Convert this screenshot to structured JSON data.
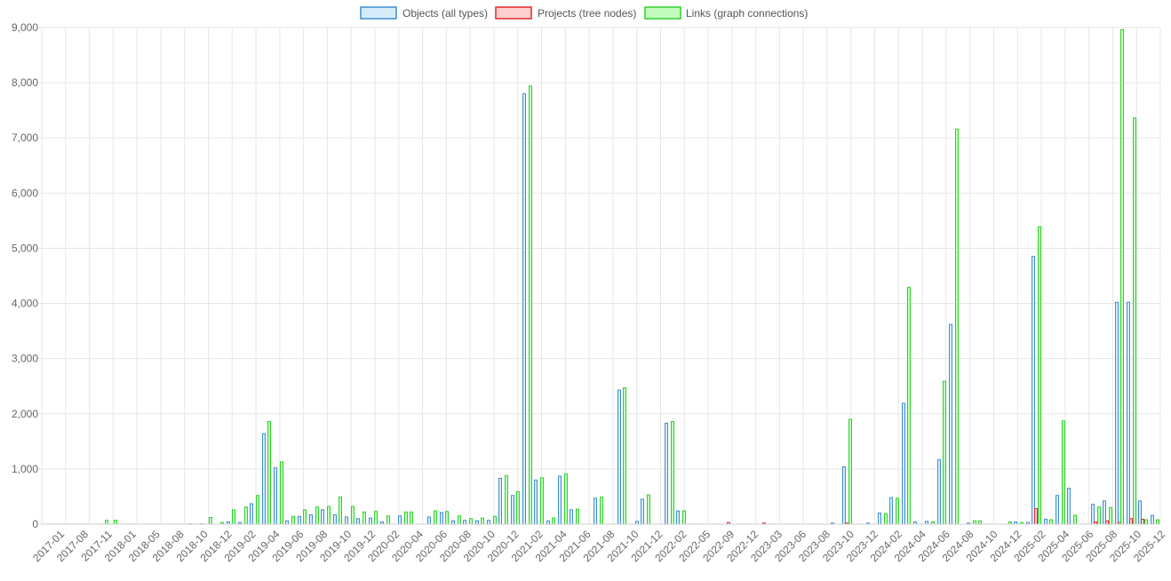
{
  "chart_data": {
    "type": "bar",
    "title": "",
    "xlabel": "",
    "ylabel": "",
    "ylim": [
      0,
      9000
    ],
    "y_ticks": [
      "0",
      "1,000",
      "2,000",
      "3,000",
      "4,000",
      "5,000",
      "6,000",
      "7,000",
      "8,000",
      "9,000"
    ],
    "y_tick_values": [
      0,
      1000,
      2000,
      3000,
      4000,
      5000,
      6000,
      7000,
      8000,
      9000
    ],
    "grid": true,
    "legend_position": "top-center",
    "x_tick_labels": [
      "2017-01",
      "2017-08",
      "2017-11",
      "2018-01",
      "2018-05",
      "2018-08",
      "2018-10",
      "2018-12",
      "2019-02",
      "2019-04",
      "2019-06",
      "2019-08",
      "2019-10",
      "2019-12",
      "2020-02",
      "2020-04",
      "2020-06",
      "2020-08",
      "2020-10",
      "2020-12",
      "2021-02",
      "2021-04",
      "2021-06",
      "2021-08",
      "2021-10",
      "2021-12",
      "2022-02",
      "2022-05",
      "2022-09",
      "2022-12",
      "2023-03",
      "2023-06",
      "2023-08",
      "2023-10",
      "2023-12",
      "2024-02",
      "2024-04",
      "2024-06",
      "2024-08",
      "2024-10",
      "2024-12",
      "2025-02",
      "2025-04",
      "2025-06",
      "2025-08",
      "2025-10",
      "2025-12"
    ],
    "series": [
      {
        "name": "Objects (all types)",
        "fill": "#d6ecfa",
        "stroke": "#3d8fd1",
        "values": [
          0,
          0,
          0,
          0,
          0,
          0,
          0,
          0,
          0,
          0,
          0,
          0,
          0,
          0,
          0,
          0,
          0,
          0,
          0,
          0,
          0,
          0,
          0,
          0,
          0,
          0,
          0,
          0,
          0,
          0,
          0,
          0,
          0,
          0,
          0,
          0,
          0,
          0,
          0,
          0,
          0,
          10,
          0,
          0,
          0,
          0,
          20,
          0,
          0,
          0,
          0,
          0,
          50,
          0,
          0,
          0,
          0,
          0,
          40,
          0,
          0,
          0,
          0,
          0,
          0,
          0,
          0,
          0,
          0,
          0,
          0,
          0,
          0,
          0,
          0,
          0,
          0,
          0,
          0,
          0,
          0,
          0,
          0,
          0,
          0,
          0,
          0,
          0,
          0,
          0,
          0,
          0,
          0,
          0,
          0,
          0,
          0,
          0,
          0,
          0,
          0,
          0,
          0,
          0,
          0,
          0,
          0,
          0,
          0,
          0,
          0,
          0,
          0,
          0,
          0,
          0,
          0,
          0,
          0,
          0,
          0,
          0,
          0,
          0,
          0,
          0,
          0,
          0,
          0,
          0,
          0,
          0,
          0,
          0,
          0,
          0,
          0,
          0,
          0,
          0,
          0,
          0,
          0,
          0,
          0,
          0,
          0,
          0,
          0,
          0,
          0,
          0,
          0,
          0,
          0,
          0,
          0,
          0,
          0,
          0,
          0,
          0,
          0,
          0,
          0,
          0,
          0,
          0,
          0,
          0,
          0,
          0,
          0,
          0,
          0,
          0,
          0,
          0,
          0,
          0,
          0,
          0,
          0,
          0,
          0,
          0,
          0,
          0,
          0,
          0,
          0,
          0,
          0,
          0,
          0,
          0,
          0,
          0,
          0,
          0,
          0,
          0,
          0,
          0,
          0,
          0,
          0,
          0,
          0,
          0,
          0,
          0,
          0,
          0,
          0,
          0,
          0,
          0,
          0,
          0,
          0,
          0,
          0,
          0,
          0,
          0,
          0,
          0,
          0,
          0,
          0,
          0,
          0,
          0,
          0,
          0,
          0,
          0,
          0,
          0,
          0,
          0,
          0,
          0,
          0,
          0,
          0,
          0,
          0,
          0,
          0,
          0,
          0,
          0,
          0,
          0,
          0,
          0,
          0,
          0,
          0,
          0,
          0,
          0,
          0,
          0,
          0,
          0,
          0,
          0,
          0,
          0,
          0,
          0,
          0,
          0,
          0,
          0,
          0,
          0,
          0,
          0,
          0,
          0,
          0,
          0,
          0,
          0,
          0,
          0,
          0,
          0,
          0,
          0,
          0,
          0,
          0,
          0,
          0,
          0,
          0,
          0,
          0,
          0,
          0,
          0,
          0,
          0,
          0,
          0,
          0,
          0,
          0,
          0,
          0
        ]
      },
      {
        "name": "Projects (tree nodes)",
        "fill": "#ffcfcf",
        "stroke": "#e0282e",
        "values": []
      },
      {
        "name": "Links (graph connections)",
        "fill": "#c4fcc0",
        "stroke": "#2ed12a",
        "values": []
      }
    ],
    "months": [
      {
        "x": 60,
        "o": 0,
        "p": 0,
        "l": 0
      },
      {
        "x": 120,
        "o": 0,
        "p": 0,
        "l": 70
      },
      {
        "x": 130,
        "o": 0,
        "p": 0,
        "l": 70
      },
      {
        "x": 214,
        "o": 5,
        "p": 0,
        "l": 0
      },
      {
        "x": 227,
        "o": 5,
        "p": 0,
        "l": 0
      },
      {
        "x": 237,
        "o": 0,
        "p": 0,
        "l": 120
      },
      {
        "x": 250,
        "o": 10,
        "p": 0,
        "l": 30
      },
      {
        "x": 257,
        "o": 40,
        "p": 0,
        "l": 0
      },
      {
        "x": 263,
        "o": 0,
        "p": 0,
        "l": 260
      },
      {
        "x": 270,
        "o": 30,
        "p": 0,
        "l": 0
      },
      {
        "x": 277,
        "o": 0,
        "p": 0,
        "l": 310
      },
      {
        "x": 283,
        "o": 370,
        "p": 0,
        "l": 0
      },
      {
        "x": 290,
        "o": 0,
        "p": 0,
        "l": 520
      },
      {
        "x": 297,
        "o": 1640,
        "p": 0,
        "l": 0
      },
      {
        "x": 303,
        "o": 0,
        "p": 0,
        "l": 1860
      },
      {
        "x": 310,
        "o": 1020,
        "p": 0,
        "l": 0
      },
      {
        "x": 317,
        "o": 0,
        "p": 0,
        "l": 1130
      },
      {
        "x": 323,
        "o": 60,
        "p": 0,
        "l": 0
      },
      {
        "x": 330,
        "o": 0,
        "p": 0,
        "l": 140
      },
      {
        "x": 337,
        "o": 140,
        "p": 0,
        "l": 0
      },
      {
        "x": 343,
        "o": 0,
        "p": 0,
        "l": 260
      },
      {
        "x": 350,
        "o": 170,
        "p": 0,
        "l": 0
      },
      {
        "x": 357,
        "o": 0,
        "p": 0,
        "l": 310
      },
      {
        "x": 363,
        "o": 260,
        "p": 0,
        "l": 0
      },
      {
        "x": 370,
        "o": 0,
        "p": 0,
        "l": 320
      },
      {
        "x": 377,
        "o": 170,
        "p": 0,
        "l": 0
      },
      {
        "x": 383,
        "o": 0,
        "p": 0,
        "l": 490
      },
      {
        "x": 390,
        "o": 130,
        "p": 0,
        "l": 0
      },
      {
        "x": 397,
        "o": 0,
        "p": 0,
        "l": 320
      },
      {
        "x": 403,
        "o": 100,
        "p": 0,
        "l": 0
      },
      {
        "x": 410,
        "o": 0,
        "p": 0,
        "l": 220
      },
      {
        "x": 417,
        "o": 110,
        "p": 0,
        "l": 0
      },
      {
        "x": 423,
        "o": 0,
        "p": 0,
        "l": 230
      },
      {
        "x": 430,
        "o": 40,
        "p": 0,
        "l": 0
      },
      {
        "x": 437,
        "o": 0,
        "p": 0,
        "l": 150
      },
      {
        "x": 450,
        "o": 150,
        "p": 0,
        "l": 0
      },
      {
        "x": 457,
        "o": 0,
        "p": 0,
        "l": 220
      },
      {
        "x": 463,
        "o": 0,
        "p": 0,
        "l": 220
      },
      {
        "x": 483,
        "o": 130,
        "p": 0,
        "l": 0
      },
      {
        "x": 490,
        "o": 0,
        "p": 0,
        "l": 240
      },
      {
        "x": 497,
        "o": 210,
        "p": 0,
        "l": 0
      },
      {
        "x": 503,
        "o": 0,
        "p": 0,
        "l": 230
      },
      {
        "x": 510,
        "o": 60,
        "p": 0,
        "l": 0
      },
      {
        "x": 517,
        "o": 0,
        "p": 0,
        "l": 150
      },
      {
        "x": 523,
        "o": 70,
        "p": 0,
        "l": 0
      },
      {
        "x": 530,
        "o": 0,
        "p": 0,
        "l": 100
      },
      {
        "x": 537,
        "o": 60,
        "p": 0,
        "l": 0
      },
      {
        "x": 543,
        "o": 0,
        "p": 0,
        "l": 110
      },
      {
        "x": 550,
        "o": 70,
        "p": 0,
        "l": 0
      },
      {
        "x": 557,
        "o": 0,
        "p": 0,
        "l": 140
      },
      {
        "x": 563,
        "o": 830,
        "p": 0,
        "l": 0
      },
      {
        "x": 570,
        "o": 0,
        "p": 0,
        "l": 880
      },
      {
        "x": 577,
        "o": 520,
        "p": 0,
        "l": 0
      },
      {
        "x": 583,
        "o": 0,
        "p": 0,
        "l": 590
      },
      {
        "x": 590,
        "o": 7800,
        "p": 0,
        "l": 0
      },
      {
        "x": 597,
        "o": 0,
        "p": 0,
        "l": 7940
      },
      {
        "x": 603,
        "o": 800,
        "p": 0,
        "l": 0
      },
      {
        "x": 610,
        "o": 0,
        "p": 0,
        "l": 840
      },
      {
        "x": 617,
        "o": 60,
        "p": 0,
        "l": 0
      },
      {
        "x": 623,
        "o": 0,
        "p": 0,
        "l": 110
      },
      {
        "x": 630,
        "o": 870,
        "p": 0,
        "l": 0
      },
      {
        "x": 637,
        "o": 0,
        "p": 0,
        "l": 910
      },
      {
        "x": 643,
        "o": 260,
        "p": 0,
        "l": 0
      },
      {
        "x": 650,
        "o": 0,
        "p": 0,
        "l": 270
      },
      {
        "x": 670,
        "o": 470,
        "p": 0,
        "l": 0
      },
      {
        "x": 677,
        "o": 0,
        "p": 0,
        "l": 490
      },
      {
        "x": 697,
        "o": 2430,
        "p": 0,
        "l": 0
      },
      {
        "x": 703,
        "o": 0,
        "p": 0,
        "l": 2470
      },
      {
        "x": 717,
        "o": 50,
        "p": 0,
        "l": 0
      },
      {
        "x": 723,
        "o": 450,
        "p": 0,
        "l": 0
      },
      {
        "x": 730,
        "o": 0,
        "p": 0,
        "l": 530
      },
      {
        "x": 750,
        "o": 1830,
        "p": 0,
        "l": 0
      },
      {
        "x": 757,
        "o": 0,
        "p": 0,
        "l": 1860
      },
      {
        "x": 763,
        "o": 240,
        "p": 0,
        "l": 0
      },
      {
        "x": 770,
        "o": 0,
        "p": 0,
        "l": 240
      },
      {
        "x": 820,
        "o": 0,
        "p": 30,
        "l": 0
      },
      {
        "x": 860,
        "o": 0,
        "p": 20,
        "l": 0
      },
      {
        "x": 937,
        "o": 20,
        "p": 0,
        "l": 0
      },
      {
        "x": 950,
        "o": 1040,
        "p": 0,
        "l": 0
      },
      {
        "x": 953,
        "o": 0,
        "p": 20,
        "l": 0
      },
      {
        "x": 957,
        "o": 0,
        "p": 0,
        "l": 1900
      },
      {
        "x": 977,
        "o": 20,
        "p": 0,
        "l": 0
      },
      {
        "x": 990,
        "o": 200,
        "p": 0,
        "l": 0
      },
      {
        "x": 997,
        "o": 0,
        "p": 0,
        "l": 190
      },
      {
        "x": 1003,
        "o": 480,
        "p": 0,
        "l": 0
      },
      {
        "x": 1010,
        "o": 0,
        "p": 0,
        "l": 470
      },
      {
        "x": 1017,
        "o": 2190,
        "p": 0,
        "l": 0
      },
      {
        "x": 1023,
        "o": 0,
        "p": 0,
        "l": 4290
      },
      {
        "x": 1030,
        "o": 40,
        "p": 0,
        "l": 0
      },
      {
        "x": 1043,
        "o": 50,
        "p": 0,
        "l": 0
      },
      {
        "x": 1050,
        "o": 0,
        "p": 0,
        "l": 40
      },
      {
        "x": 1057,
        "o": 1170,
        "p": 0,
        "l": 0
      },
      {
        "x": 1063,
        "o": 0,
        "p": 0,
        "l": 2590
      },
      {
        "x": 1070,
        "o": 3620,
        "p": 0,
        "l": 0
      },
      {
        "x": 1077,
        "o": 0,
        "p": 0,
        "l": 7160
      },
      {
        "x": 1090,
        "o": 20,
        "p": 0,
        "l": 0
      },
      {
        "x": 1097,
        "o": 0,
        "p": 0,
        "l": 60
      },
      {
        "x": 1103,
        "o": 0,
        "p": 0,
        "l": 60
      },
      {
        "x": 1137,
        "o": 0,
        "p": 0,
        "l": 40
      },
      {
        "x": 1143,
        "o": 40,
        "p": 0,
        "l": 0
      },
      {
        "x": 1150,
        "o": 0,
        "p": 0,
        "l": 30
      },
      {
        "x": 1157,
        "o": 30,
        "p": 0,
        "l": 0
      },
      {
        "x": 1163,
        "o": 4850,
        "p": 0,
        "l": 0
      },
      {
        "x": 1166,
        "o": 0,
        "p": 280,
        "l": 0
      },
      {
        "x": 1170,
        "o": 0,
        "p": 0,
        "l": 5390
      },
      {
        "x": 1177,
        "o": 90,
        "p": 0,
        "l": 0
      },
      {
        "x": 1183,
        "o": 0,
        "p": 0,
        "l": 80
      },
      {
        "x": 1190,
        "o": 520,
        "p": 0,
        "l": 0
      },
      {
        "x": 1197,
        "o": 0,
        "p": 0,
        "l": 1870
      },
      {
        "x": 1203,
        "o": 650,
        "p": 0,
        "l": 0
      },
      {
        "x": 1210,
        "o": 0,
        "p": 0,
        "l": 160
      },
      {
        "x": 1230,
        "o": 360,
        "p": 0,
        "l": 0
      },
      {
        "x": 1233,
        "o": 0,
        "p": 40,
        "l": 0
      },
      {
        "x": 1237,
        "o": 0,
        "p": 0,
        "l": 310
      },
      {
        "x": 1243,
        "o": 420,
        "p": 0,
        "l": 0
      },
      {
        "x": 1246,
        "o": 0,
        "p": 60,
        "l": 0
      },
      {
        "x": 1250,
        "o": 0,
        "p": 0,
        "l": 300
      },
      {
        "x": 1257,
        "o": 4020,
        "p": 0,
        "l": 0
      },
      {
        "x": 1260,
        "o": 0,
        "p": 30,
        "l": 0
      },
      {
        "x": 1263,
        "o": 0,
        "p": 0,
        "l": 8960
      },
      {
        "x": 1270,
        "o": 4020,
        "p": 0,
        "l": 0
      },
      {
        "x": 1273,
        "o": 0,
        "p": 100,
        "l": 0
      },
      {
        "x": 1277,
        "o": 0,
        "p": 0,
        "l": 7360
      },
      {
        "x": 1283,
        "o": 420,
        "p": 0,
        "l": 0
      },
      {
        "x": 1286,
        "o": 0,
        "p": 90,
        "l": 0
      },
      {
        "x": 1290,
        "o": 0,
        "p": 0,
        "l": 80
      },
      {
        "x": 1297,
        "o": 160,
        "p": 0,
        "l": 0
      },
      {
        "x": 1303,
        "o": 0,
        "p": 0,
        "l": 80
      }
    ]
  }
}
